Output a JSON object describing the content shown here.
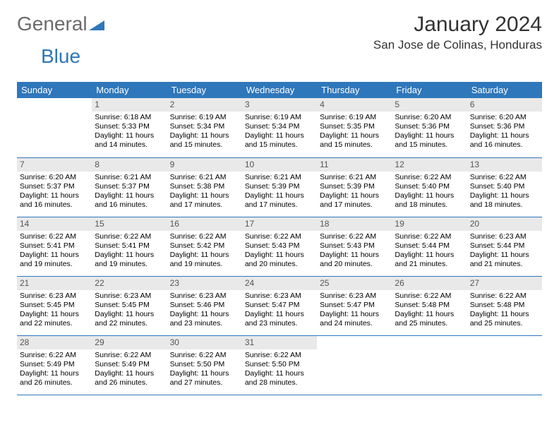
{
  "brand": {
    "part1": "General",
    "part2": "Blue"
  },
  "title": "January 2024",
  "location": "San Jose de Colinas, Honduras",
  "colors": {
    "header_bg": "#2f77bb",
    "header_text": "#ffffff",
    "daynum_bg": "#e9e9e9",
    "daynum_text": "#555555",
    "text": "#000000",
    "rule": "#2f77bb",
    "brand_gray": "#6b6b6b",
    "brand_blue": "#2f77bb"
  },
  "weekdays": [
    "Sunday",
    "Monday",
    "Tuesday",
    "Wednesday",
    "Thursday",
    "Friday",
    "Saturday"
  ],
  "first_weekday_index": 1,
  "days": [
    {
      "n": 1,
      "sunrise": "6:18 AM",
      "sunset": "5:33 PM",
      "daylight": "11 hours and 14 minutes."
    },
    {
      "n": 2,
      "sunrise": "6:19 AM",
      "sunset": "5:34 PM",
      "daylight": "11 hours and 15 minutes."
    },
    {
      "n": 3,
      "sunrise": "6:19 AM",
      "sunset": "5:34 PM",
      "daylight": "11 hours and 15 minutes."
    },
    {
      "n": 4,
      "sunrise": "6:19 AM",
      "sunset": "5:35 PM",
      "daylight": "11 hours and 15 minutes."
    },
    {
      "n": 5,
      "sunrise": "6:20 AM",
      "sunset": "5:36 PM",
      "daylight": "11 hours and 15 minutes."
    },
    {
      "n": 6,
      "sunrise": "6:20 AM",
      "sunset": "5:36 PM",
      "daylight": "11 hours and 16 minutes."
    },
    {
      "n": 7,
      "sunrise": "6:20 AM",
      "sunset": "5:37 PM",
      "daylight": "11 hours and 16 minutes."
    },
    {
      "n": 8,
      "sunrise": "6:21 AM",
      "sunset": "5:37 PM",
      "daylight": "11 hours and 16 minutes."
    },
    {
      "n": 9,
      "sunrise": "6:21 AM",
      "sunset": "5:38 PM",
      "daylight": "11 hours and 17 minutes."
    },
    {
      "n": 10,
      "sunrise": "6:21 AM",
      "sunset": "5:39 PM",
      "daylight": "11 hours and 17 minutes."
    },
    {
      "n": 11,
      "sunrise": "6:21 AM",
      "sunset": "5:39 PM",
      "daylight": "11 hours and 17 minutes."
    },
    {
      "n": 12,
      "sunrise": "6:22 AM",
      "sunset": "5:40 PM",
      "daylight": "11 hours and 18 minutes."
    },
    {
      "n": 13,
      "sunrise": "6:22 AM",
      "sunset": "5:40 PM",
      "daylight": "11 hours and 18 minutes."
    },
    {
      "n": 14,
      "sunrise": "6:22 AM",
      "sunset": "5:41 PM",
      "daylight": "11 hours and 19 minutes."
    },
    {
      "n": 15,
      "sunrise": "6:22 AM",
      "sunset": "5:41 PM",
      "daylight": "11 hours and 19 minutes."
    },
    {
      "n": 16,
      "sunrise": "6:22 AM",
      "sunset": "5:42 PM",
      "daylight": "11 hours and 19 minutes."
    },
    {
      "n": 17,
      "sunrise": "6:22 AM",
      "sunset": "5:43 PM",
      "daylight": "11 hours and 20 minutes."
    },
    {
      "n": 18,
      "sunrise": "6:22 AM",
      "sunset": "5:43 PM",
      "daylight": "11 hours and 20 minutes."
    },
    {
      "n": 19,
      "sunrise": "6:22 AM",
      "sunset": "5:44 PM",
      "daylight": "11 hours and 21 minutes."
    },
    {
      "n": 20,
      "sunrise": "6:23 AM",
      "sunset": "5:44 PM",
      "daylight": "11 hours and 21 minutes."
    },
    {
      "n": 21,
      "sunrise": "6:23 AM",
      "sunset": "5:45 PM",
      "daylight": "11 hours and 22 minutes."
    },
    {
      "n": 22,
      "sunrise": "6:23 AM",
      "sunset": "5:45 PM",
      "daylight": "11 hours and 22 minutes."
    },
    {
      "n": 23,
      "sunrise": "6:23 AM",
      "sunset": "5:46 PM",
      "daylight": "11 hours and 23 minutes."
    },
    {
      "n": 24,
      "sunrise": "6:23 AM",
      "sunset": "5:47 PM",
      "daylight": "11 hours and 23 minutes."
    },
    {
      "n": 25,
      "sunrise": "6:23 AM",
      "sunset": "5:47 PM",
      "daylight": "11 hours and 24 minutes."
    },
    {
      "n": 26,
      "sunrise": "6:22 AM",
      "sunset": "5:48 PM",
      "daylight": "11 hours and 25 minutes."
    },
    {
      "n": 27,
      "sunrise": "6:22 AM",
      "sunset": "5:48 PM",
      "daylight": "11 hours and 25 minutes."
    },
    {
      "n": 28,
      "sunrise": "6:22 AM",
      "sunset": "5:49 PM",
      "daylight": "11 hours and 26 minutes."
    },
    {
      "n": 29,
      "sunrise": "6:22 AM",
      "sunset": "5:49 PM",
      "daylight": "11 hours and 26 minutes."
    },
    {
      "n": 30,
      "sunrise": "6:22 AM",
      "sunset": "5:50 PM",
      "daylight": "11 hours and 27 minutes."
    },
    {
      "n": 31,
      "sunrise": "6:22 AM",
      "sunset": "5:50 PM",
      "daylight": "11 hours and 28 minutes."
    }
  ],
  "labels": {
    "sunrise": "Sunrise:",
    "sunset": "Sunset:",
    "daylight": "Daylight:"
  }
}
